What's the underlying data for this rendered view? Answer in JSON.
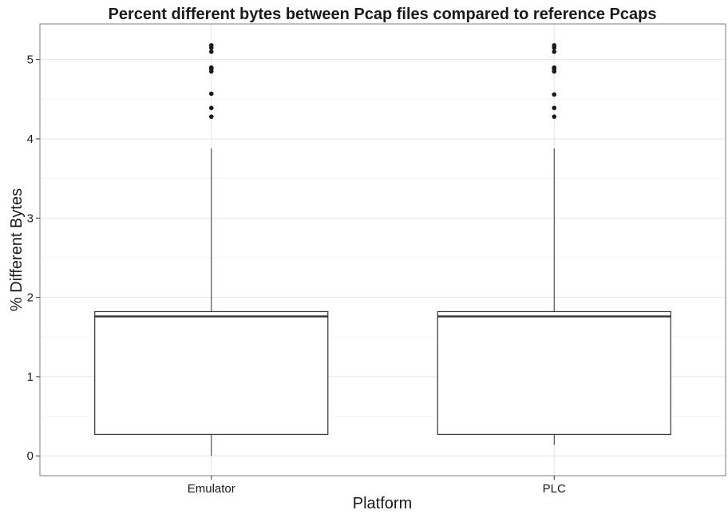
{
  "chart_data": {
    "type": "boxplot",
    "title": "Percent different bytes between Pcap files compared to reference Pcaps",
    "xlabel": "Platform",
    "ylabel": "% Different Bytes",
    "categories": [
      "Emulator",
      "PLC"
    ],
    "ylim": [
      -0.25,
      5.45
    ],
    "yticks": [
      0,
      1,
      2,
      3,
      4,
      5
    ],
    "grid": true,
    "boxes": [
      {
        "category": "Emulator",
        "whisker_low": 0.0,
        "q1": 0.27,
        "median": 1.76,
        "q3": 1.82,
        "whisker_high": 3.88,
        "outliers": [
          4.28,
          4.39,
          4.57,
          4.85,
          4.88,
          4.9,
          5.1,
          5.15,
          5.18
        ]
      },
      {
        "category": "PLC",
        "whisker_low": 0.14,
        "q1": 0.27,
        "median": 1.76,
        "q3": 1.82,
        "whisker_high": 3.88,
        "outliers": [
          4.28,
          4.39,
          4.56,
          4.85,
          4.88,
          4.9,
          5.1,
          5.15,
          5.18
        ]
      }
    ]
  }
}
